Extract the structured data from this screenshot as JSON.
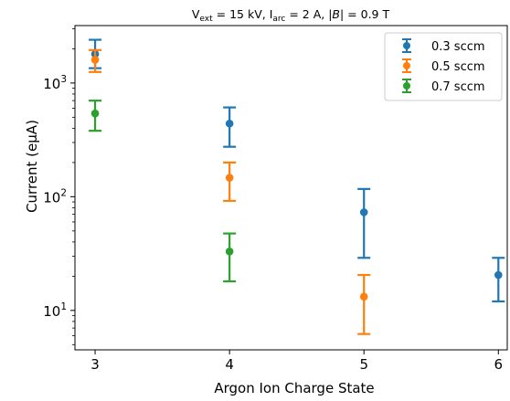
{
  "chart_data": {
    "type": "scatter",
    "title_parts": {
      "v_base": "V",
      "v_sub": "ext",
      "v_value": " = 15 kV, I",
      "i_sub": "arc",
      "b_value": " = 2 A, |",
      "b_symbol": "B",
      "b_tail": "| = 0.9 T"
    },
    "xlabel": "Argon Ion Charge State",
    "ylabel": "Current (eμA)",
    "y_scale": "log",
    "xlim": [
      2.85,
      6.1
    ],
    "ylim": [
      4.5,
      3200
    ],
    "x_ticks": [
      3,
      4,
      5,
      6
    ],
    "x_tick_labels": [
      "3",
      "4",
      "5",
      "6"
    ],
    "y_major_ticks": [
      {
        "value": 10,
        "base": "10",
        "exp": "1"
      },
      {
        "value": 100,
        "base": "10",
        "exp": "2"
      },
      {
        "value": 1000,
        "base": "10",
        "exp": "3"
      }
    ],
    "legend_position": "top-right",
    "grid": false,
    "series": [
      {
        "name": "0.3 sccm",
        "color": "#1f77b4",
        "points": [
          {
            "x": 3,
            "y": 1800,
            "lo": 1350,
            "hi": 2400
          },
          {
            "x": 4,
            "y": 440,
            "lo": 275,
            "hi": 610
          },
          {
            "x": 5,
            "y": 73,
            "lo": 29,
            "hi": 117
          },
          {
            "x": 6,
            "y": 20.5,
            "lo": 12,
            "hi": 29
          }
        ]
      },
      {
        "name": "0.5 sccm",
        "color": "#ff7f0e",
        "points": [
          {
            "x": 3,
            "y": 1600,
            "lo": 1250,
            "hi": 1950
          },
          {
            "x": 4,
            "y": 147,
            "lo": 92,
            "hi": 200
          },
          {
            "x": 5,
            "y": 13.2,
            "lo": 6.2,
            "hi": 20.5
          }
        ]
      },
      {
        "name": "0.7 sccm",
        "color": "#2ca02c",
        "points": [
          {
            "x": 3,
            "y": 540,
            "lo": 380,
            "hi": 700
          },
          {
            "x": 4,
            "y": 33,
            "lo": 18,
            "hi": 47.5
          }
        ]
      }
    ]
  }
}
